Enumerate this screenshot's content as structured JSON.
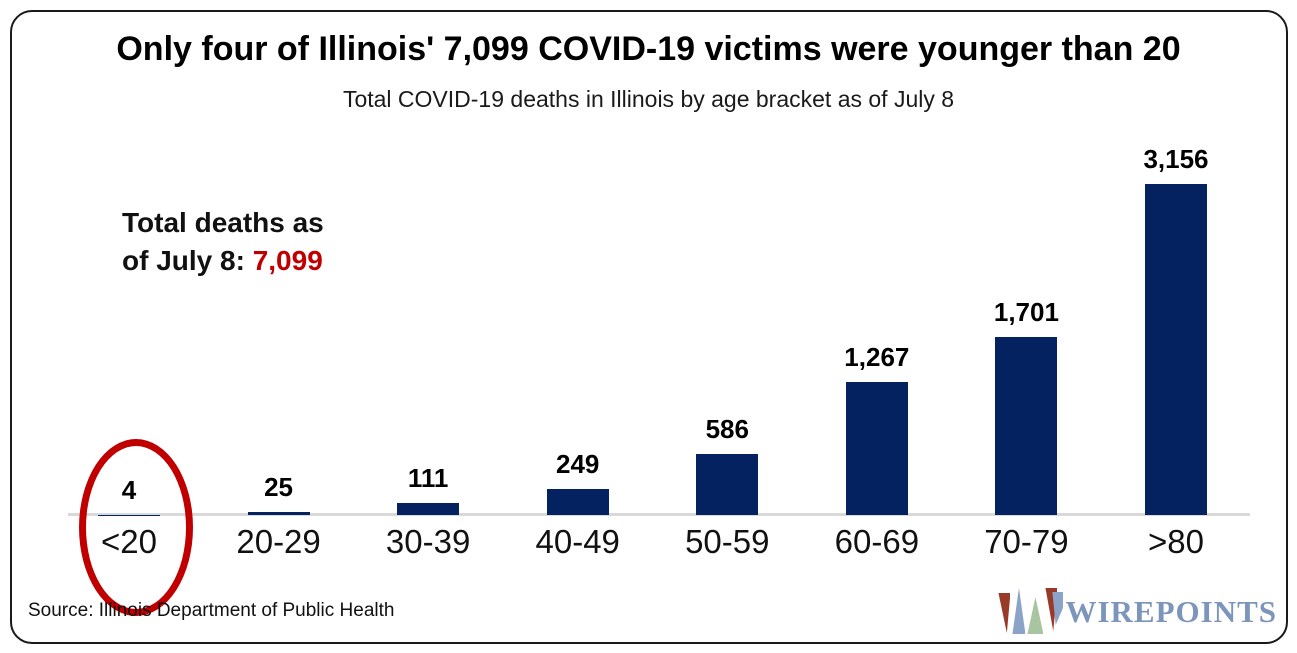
{
  "header": {
    "title": "Only four of Illinois' 7,099 COVID-19 victims were younger than 20",
    "subtitle": "Total COVID-19 deaths in Illinois by age bracket as of July 8"
  },
  "annotation": {
    "line1": "Total deaths as",
    "line2_prefix": "of July 8: ",
    "total_value": "7,099",
    "total_color": "#C00000"
  },
  "chart_data": {
    "type": "bar",
    "title": "Only four of Illinois' 7,099 COVID-19 victims were younger than 20",
    "subtitle": "Total COVID-19 deaths in Illinois by age bracket as of July 8",
    "categories": [
      "<20",
      "20-29",
      "30-39",
      "40-49",
      "50-59",
      "60-69",
      "70-79",
      ">80"
    ],
    "values": [
      4,
      25,
      111,
      249,
      586,
      1267,
      1701,
      3156
    ],
    "value_labels": [
      "4",
      "25",
      "111",
      "249",
      "586",
      "1,267",
      "1,701",
      "3,156"
    ],
    "xlabel": "",
    "ylabel": "",
    "ylim": [
      0,
      3350
    ],
    "grid": false,
    "legend": "none",
    "data_labels_position": "above bars",
    "bar_color": "#052260",
    "axis_line_color": "#D9D9D9",
    "highlight": {
      "category": "<20",
      "value": 4,
      "shape": "ellipse",
      "color": "#C00000"
    }
  },
  "footer": {
    "source": "Source: Illinois Department of Public Health",
    "logo": {
      "text": "WIREPOINTS",
      "text_color": "#7C95BA",
      "mark_colors": [
        "#993A28",
        "#8BA3C7",
        "#A9C4A1",
        "#993A28",
        "#8BA3C7"
      ]
    }
  }
}
